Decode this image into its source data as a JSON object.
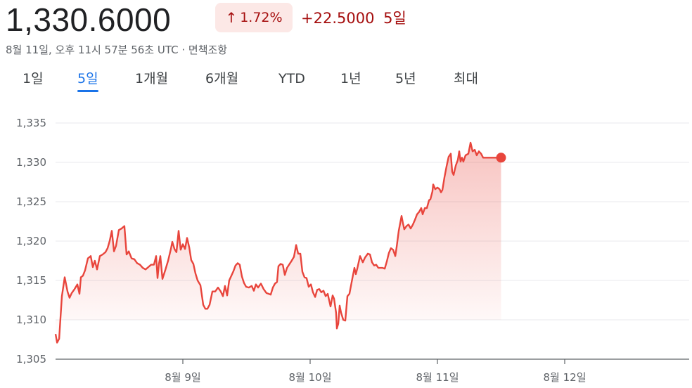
{
  "header": {
    "price": "1,330.6000",
    "change_percent": "1.72%",
    "change_abs": "+22.5000",
    "change_period": "5일",
    "timestamp": "8월 11일, 오후 11시 57분 56초 UTC · 면책조항"
  },
  "tabs": [
    {
      "label": "1일",
      "active": false
    },
    {
      "label": "5일",
      "active": true
    },
    {
      "label": "1개월",
      "active": false
    },
    {
      "label": "6개월",
      "active": false
    },
    {
      "label": "YTD",
      "active": false
    },
    {
      "label": "1년",
      "active": false
    },
    {
      "label": "5년",
      "active": false
    },
    {
      "label": "최대",
      "active": false
    }
  ],
  "icons": {
    "change_direction": "arrow-up-icon"
  },
  "colors": {
    "line": "#e8453c",
    "badge_bg": "#fce8e6",
    "badge_text": "#a50e0e",
    "active_tab": "#1a73e8"
  },
  "chart_data": {
    "type": "line",
    "title": "",
    "xlabel": "",
    "ylabel": "",
    "ylim": [
      1305,
      1335
    ],
    "yticks": [
      "1,305",
      "1,310",
      "1,315",
      "1,320",
      "1,325",
      "1,330",
      "1,335"
    ],
    "ytick_values": [
      1305,
      1310,
      1315,
      1320,
      1325,
      1330,
      1335
    ],
    "xlim": [
      0,
      5
    ],
    "xticks": [
      "8월 9일",
      "8월 10일",
      "8월 11일",
      "8월 12일"
    ],
    "xtick_values": [
      1,
      2,
      3,
      4
    ],
    "grid": true,
    "series": [
      {
        "values": [
          [
            0.0,
            1308.2
          ],
          [
            0.012,
            1307.1
          ],
          [
            0.028,
            1307.6
          ],
          [
            0.05,
            1313.0
          ],
          [
            0.072,
            1315.4
          ],
          [
            0.094,
            1313.6
          ],
          [
            0.11,
            1312.8
          ],
          [
            0.127,
            1313.4
          ],
          [
            0.149,
            1313.9
          ],
          [
            0.171,
            1314.5
          ],
          [
            0.188,
            1313.3
          ],
          [
            0.199,
            1315.4
          ],
          [
            0.215,
            1315.6
          ],
          [
            0.232,
            1316.3
          ],
          [
            0.254,
            1317.8
          ],
          [
            0.276,
            1318.1
          ],
          [
            0.293,
            1316.7
          ],
          [
            0.309,
            1317.5
          ],
          [
            0.326,
            1316.4
          ],
          [
            0.348,
            1318.1
          ],
          [
            0.37,
            1318.3
          ],
          [
            0.392,
            1318.6
          ],
          [
            0.409,
            1319.1
          ],
          [
            0.425,
            1320.0
          ],
          [
            0.442,
            1321.3
          ],
          [
            0.459,
            1318.7
          ],
          [
            0.475,
            1319.4
          ],
          [
            0.497,
            1321.4
          ],
          [
            0.519,
            1321.6
          ],
          [
            0.541,
            1321.9
          ],
          [
            0.558,
            1318.3
          ],
          [
            0.575,
            1318.7
          ],
          [
            0.597,
            1317.8
          ],
          [
            0.619,
            1317.7
          ],
          [
            0.641,
            1317.2
          ],
          [
            0.663,
            1317.0
          ],
          [
            0.685,
            1316.6
          ],
          [
            0.707,
            1316.4
          ],
          [
            0.729,
            1316.7
          ],
          [
            0.751,
            1317.0
          ],
          [
            0.773,
            1317.0
          ],
          [
            0.79,
            1318.1
          ],
          [
            0.801,
            1315.3
          ],
          [
            0.812,
            1317.1
          ],
          [
            0.823,
            1318.1
          ],
          [
            0.84,
            1315.2
          ],
          [
            0.862,
            1316.3
          ],
          [
            0.884,
            1317.5
          ],
          [
            0.906,
            1319.0
          ],
          [
            0.917,
            1319.9
          ],
          [
            0.934,
            1319.0
          ],
          [
            0.95,
            1318.6
          ],
          [
            0.967,
            1321.3
          ],
          [
            0.983,
            1318.9
          ],
          [
            1.0,
            1319.6
          ],
          [
            1.017,
            1319.0
          ],
          [
            1.033,
            1320.4
          ],
          [
            1.05,
            1319.2
          ],
          [
            1.066,
            1317.6
          ],
          [
            1.083,
            1317.1
          ],
          [
            1.099,
            1315.9
          ],
          [
            1.116,
            1315.0
          ],
          [
            1.127,
            1314.7
          ],
          [
            1.138,
            1314.4
          ],
          [
            1.16,
            1311.9
          ],
          [
            1.177,
            1311.4
          ],
          [
            1.193,
            1311.4
          ],
          [
            1.21,
            1311.9
          ],
          [
            1.232,
            1313.6
          ],
          [
            1.254,
            1313.6
          ],
          [
            1.276,
            1314.1
          ],
          [
            1.298,
            1313.6
          ],
          [
            1.315,
            1313.0
          ],
          [
            1.331,
            1314.3
          ],
          [
            1.348,
            1313.1
          ],
          [
            1.364,
            1315.0
          ],
          [
            1.381,
            1315.6
          ],
          [
            1.398,
            1316.2
          ],
          [
            1.414,
            1316.9
          ],
          [
            1.431,
            1317.2
          ],
          [
            1.447,
            1317.0
          ],
          [
            1.464,
            1315.5
          ],
          [
            1.48,
            1314.7
          ],
          [
            1.497,
            1314.2
          ],
          [
            1.519,
            1314.1
          ],
          [
            1.541,
            1314.3
          ],
          [
            1.558,
            1313.7
          ],
          [
            1.574,
            1314.5
          ],
          [
            1.591,
            1314.1
          ],
          [
            1.613,
            1314.6
          ],
          [
            1.635,
            1313.9
          ],
          [
            1.657,
            1313.4
          ],
          [
            1.674,
            1313.3
          ],
          [
            1.69,
            1313.2
          ],
          [
            1.707,
            1314.1
          ],
          [
            1.724,
            1314.6
          ],
          [
            1.74,
            1314.8
          ],
          [
            1.751,
            1316.8
          ],
          [
            1.768,
            1317.1
          ],
          [
            1.785,
            1317.0
          ],
          [
            1.801,
            1315.7
          ],
          [
            1.818,
            1316.6
          ],
          [
            1.834,
            1317.0
          ],
          [
            1.851,
            1317.4
          ],
          [
            1.873,
            1318.0
          ],
          [
            1.89,
            1319.5
          ],
          [
            1.906,
            1318.4
          ],
          [
            1.923,
            1318.4
          ],
          [
            1.939,
            1316.1
          ],
          [
            1.956,
            1315.4
          ],
          [
            1.972,
            1315.3
          ],
          [
            1.989,
            1314.2
          ],
          [
            2.006,
            1314.5
          ],
          [
            2.022,
            1313.5
          ],
          [
            2.039,
            1312.9
          ],
          [
            2.055,
            1313.8
          ],
          [
            2.072,
            1313.9
          ],
          [
            2.088,
            1313.5
          ],
          [
            2.105,
            1313.7
          ],
          [
            2.122,
            1313.0
          ],
          [
            2.138,
            1313.3
          ],
          [
            2.16,
            1311.7
          ],
          [
            2.177,
            1313.1
          ],
          [
            2.188,
            1312.7
          ],
          [
            2.204,
            1310.9
          ],
          [
            2.21,
            1308.9
          ],
          [
            2.221,
            1309.5
          ],
          [
            2.232,
            1311.8
          ],
          [
            2.243,
            1310.9
          ],
          [
            2.26,
            1310.0
          ],
          [
            2.276,
            1309.9
          ],
          [
            2.293,
            1313.0
          ],
          [
            2.309,
            1313.3
          ],
          [
            2.331,
            1315.2
          ],
          [
            2.348,
            1316.6
          ],
          [
            2.359,
            1315.8
          ],
          [
            2.37,
            1316.5
          ],
          [
            2.392,
            1318.1
          ],
          [
            2.414,
            1317.3
          ],
          [
            2.431,
            1317.9
          ],
          [
            2.453,
            1318.4
          ],
          [
            2.47,
            1318.3
          ],
          [
            2.486,
            1317.3
          ],
          [
            2.503,
            1316.9
          ],
          [
            2.519,
            1317.0
          ],
          [
            2.536,
            1316.6
          ],
          [
            2.552,
            1316.6
          ],
          [
            2.569,
            1316.6
          ],
          [
            2.586,
            1316.5
          ],
          [
            2.602,
            1317.4
          ],
          [
            2.619,
            1318.5
          ],
          [
            2.635,
            1319.1
          ],
          [
            2.652,
            1318.9
          ],
          [
            2.669,
            1318.1
          ],
          [
            2.68,
            1319.3
          ],
          [
            2.696,
            1321.3
          ],
          [
            2.718,
            1323.2
          ],
          [
            2.729,
            1322.3
          ],
          [
            2.74,
            1321.5
          ],
          [
            2.757,
            1321.9
          ],
          [
            2.773,
            1322.1
          ],
          [
            2.79,
            1321.6
          ],
          [
            2.807,
            1322.1
          ],
          [
            2.823,
            1322.7
          ],
          [
            2.84,
            1323.4
          ],
          [
            2.856,
            1323.7
          ],
          [
            2.873,
            1324.2
          ],
          [
            2.884,
            1323.4
          ],
          [
            2.901,
            1324.2
          ],
          [
            2.917,
            1324.2
          ],
          [
            2.934,
            1325.2
          ],
          [
            2.945,
            1325.3
          ],
          [
            2.961,
            1326.3
          ],
          [
            2.967,
            1327.2
          ],
          [
            2.983,
            1326.6
          ],
          [
            3.0,
            1326.8
          ],
          [
            3.017,
            1326.6
          ],
          [
            3.028,
            1326.2
          ],
          [
            3.039,
            1326.5
          ],
          [
            3.055,
            1328.1
          ],
          [
            3.072,
            1329.5
          ],
          [
            3.088,
            1330.7
          ],
          [
            3.105,
            1331.1
          ],
          [
            3.116,
            1328.8
          ],
          [
            3.127,
            1328.4
          ],
          [
            3.144,
            1329.6
          ],
          [
            3.16,
            1330.3
          ],
          [
            3.171,
            1331.4
          ],
          [
            3.182,
            1330.1
          ],
          [
            3.193,
            1330.6
          ],
          [
            3.204,
            1330.1
          ],
          [
            3.221,
            1330.9
          ],
          [
            3.243,
            1331.1
          ],
          [
            3.26,
            1332.5
          ],
          [
            3.276,
            1331.4
          ],
          [
            3.293,
            1331.6
          ],
          [
            3.309,
            1330.9
          ],
          [
            3.326,
            1331.4
          ],
          [
            3.343,
            1331.1
          ],
          [
            3.359,
            1330.6
          ],
          [
            3.376,
            1330.6
          ],
          [
            3.392,
            1330.6
          ],
          [
            3.414,
            1330.6
          ],
          [
            3.425,
            1330.6
          ],
          [
            3.436,
            1330.6
          ],
          [
            3.453,
            1330.6
          ],
          [
            3.47,
            1330.6
          ],
          [
            3.486,
            1330.6
          ],
          [
            3.497,
            1330.6
          ],
          [
            3.5,
            1330.6
          ]
        ]
      }
    ]
  }
}
